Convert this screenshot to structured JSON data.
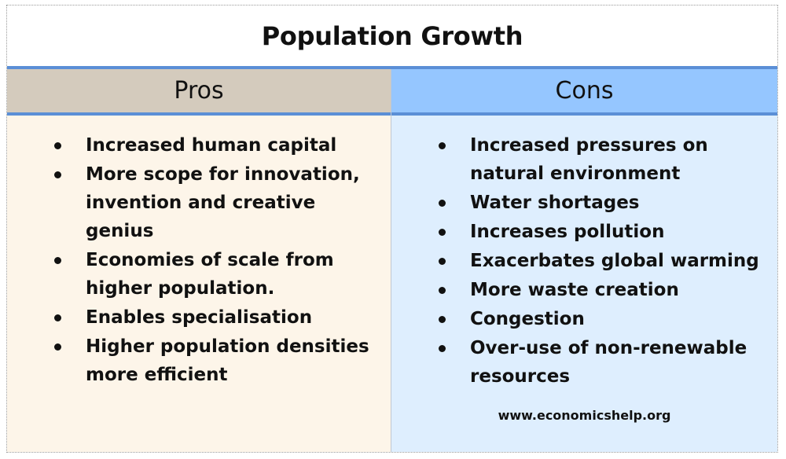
{
  "title": "Population Growth",
  "pros": {
    "heading": "Pros",
    "items": [
      "Increased human capital",
      "More scope for innovation, invention and creative genius",
      "Economies of scale from higher population.",
      "Enables specialisation",
      "Higher population densities more efficient"
    ]
  },
  "cons": {
    "heading": "Cons",
    "items": [
      "Increased pressures on natural environment",
      "Water shortages",
      "Increases pollution",
      "Exacerbates global warming",
      "More waste creation",
      "Congestion",
      "Over-use of non-renewable resources"
    ]
  },
  "credit": "www.economicshelp.org",
  "colors": {
    "rule": "#5b8fd6",
    "pros_header": "#d4cbbd",
    "cons_header": "#95c6ff",
    "pros_body": "#fdf5e9",
    "cons_body": "#deeefe"
  },
  "icons": {
    "bullet": "filled-circle"
  }
}
